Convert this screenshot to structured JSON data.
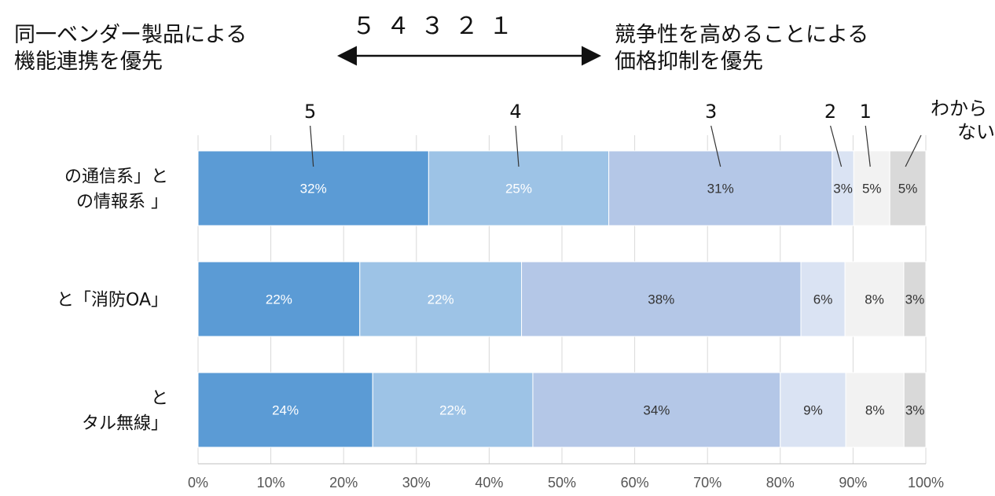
{
  "header": {
    "left_line1": "同一ベンダー製品による",
    "left_line2": "機能連携を優先",
    "right_line1": "競争性を高めることによる",
    "right_line2": "価格抑制を優先",
    "scale": "５ ４ ３ ２ １"
  },
  "chart_data": {
    "type": "bar",
    "orientation": "horizontal",
    "stacked": true,
    "percent": true,
    "categories": [
      [
        "の通信系」と",
        "の情報系 」"
      ],
      [
        "と「消防OA」"
      ],
      [
        "と",
        "タル無線」"
      ]
    ],
    "series": [
      {
        "name": "5",
        "values": [
          32,
          22,
          24
        ],
        "color": "#5b9bd5",
        "label_color": "#ffffff"
      },
      {
        "name": "4",
        "values": [
          25,
          22,
          22
        ],
        "color": "#9dc3e6",
        "label_color": "#ffffff"
      },
      {
        "name": "3",
        "values": [
          31,
          38,
          34
        ],
        "color": "#b4c7e7",
        "label_color": "#333333"
      },
      {
        "name": "2",
        "values": [
          3,
          6,
          9
        ],
        "color": "#dae3f3",
        "label_color": "#333333"
      },
      {
        "name": "1",
        "values": [
          5,
          8,
          8
        ],
        "color": "#f2f2f2",
        "label_color": "#333333"
      },
      {
        "name": "わから\nない",
        "values": [
          5,
          3,
          3
        ],
        "color": "#d9d9d9",
        "label_color": "#333333"
      }
    ],
    "xlim": [
      0,
      100
    ],
    "xticks": [
      "0%",
      "10%",
      "20%",
      "30%",
      "40%",
      "50%",
      "60%",
      "70%",
      "80%",
      "90%",
      "100%"
    ],
    "grid": true,
    "legend": "top, labels above the first bar"
  }
}
